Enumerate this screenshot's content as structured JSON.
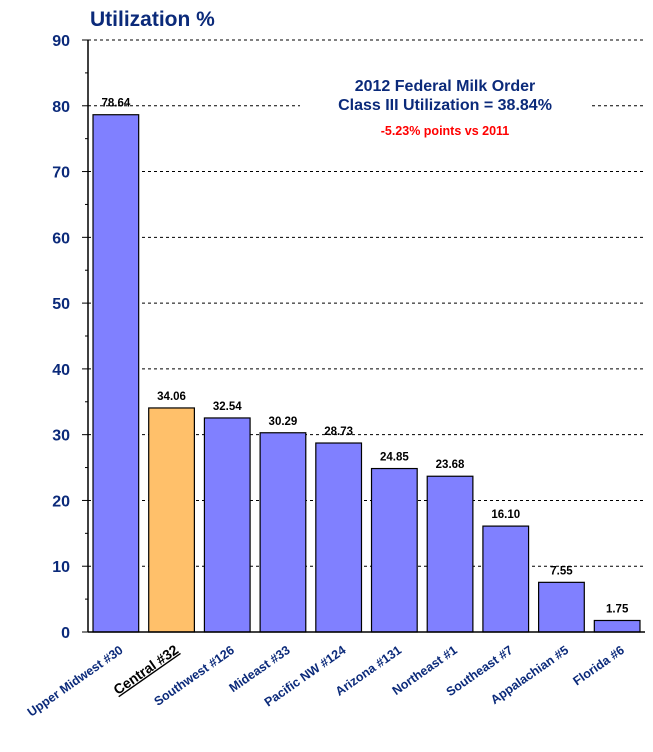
{
  "chart_data": {
    "type": "bar",
    "title": "Utilization %",
    "annotation": {
      "line1": "2012 Federal Milk Order",
      "line2": "Class III Utilization = 38.84%",
      "line3": "-5.23% points vs 2011"
    },
    "categories": [
      "Upper Midwest #30",
      "Central #32",
      "Southwest #126",
      "Mideast #33",
      "Pacific NW #124",
      "Arizona #131",
      "Northeast #1",
      "Southeast #7",
      "Appalachian #5",
      "Florida #6"
    ],
    "values": [
      78.64,
      34.06,
      32.54,
      30.29,
      28.73,
      24.85,
      23.68,
      16.1,
      7.55,
      1.75
    ],
    "value_labels": [
      "78.64",
      "34.06",
      "32.54",
      "30.29",
      "28.73",
      "24.85",
      "23.68",
      "16.10",
      "7.55",
      "1.75"
    ],
    "highlight_index": 1,
    "ylim": [
      0,
      90
    ],
    "yticks": [
      0,
      10,
      20,
      30,
      40,
      50,
      60,
      70,
      80,
      90
    ],
    "grid": true,
    "colors": {
      "bar": "#8080ff",
      "highlight": "#ffc06a",
      "axis_text": "#0b2a7a",
      "grid": "#000000"
    }
  }
}
